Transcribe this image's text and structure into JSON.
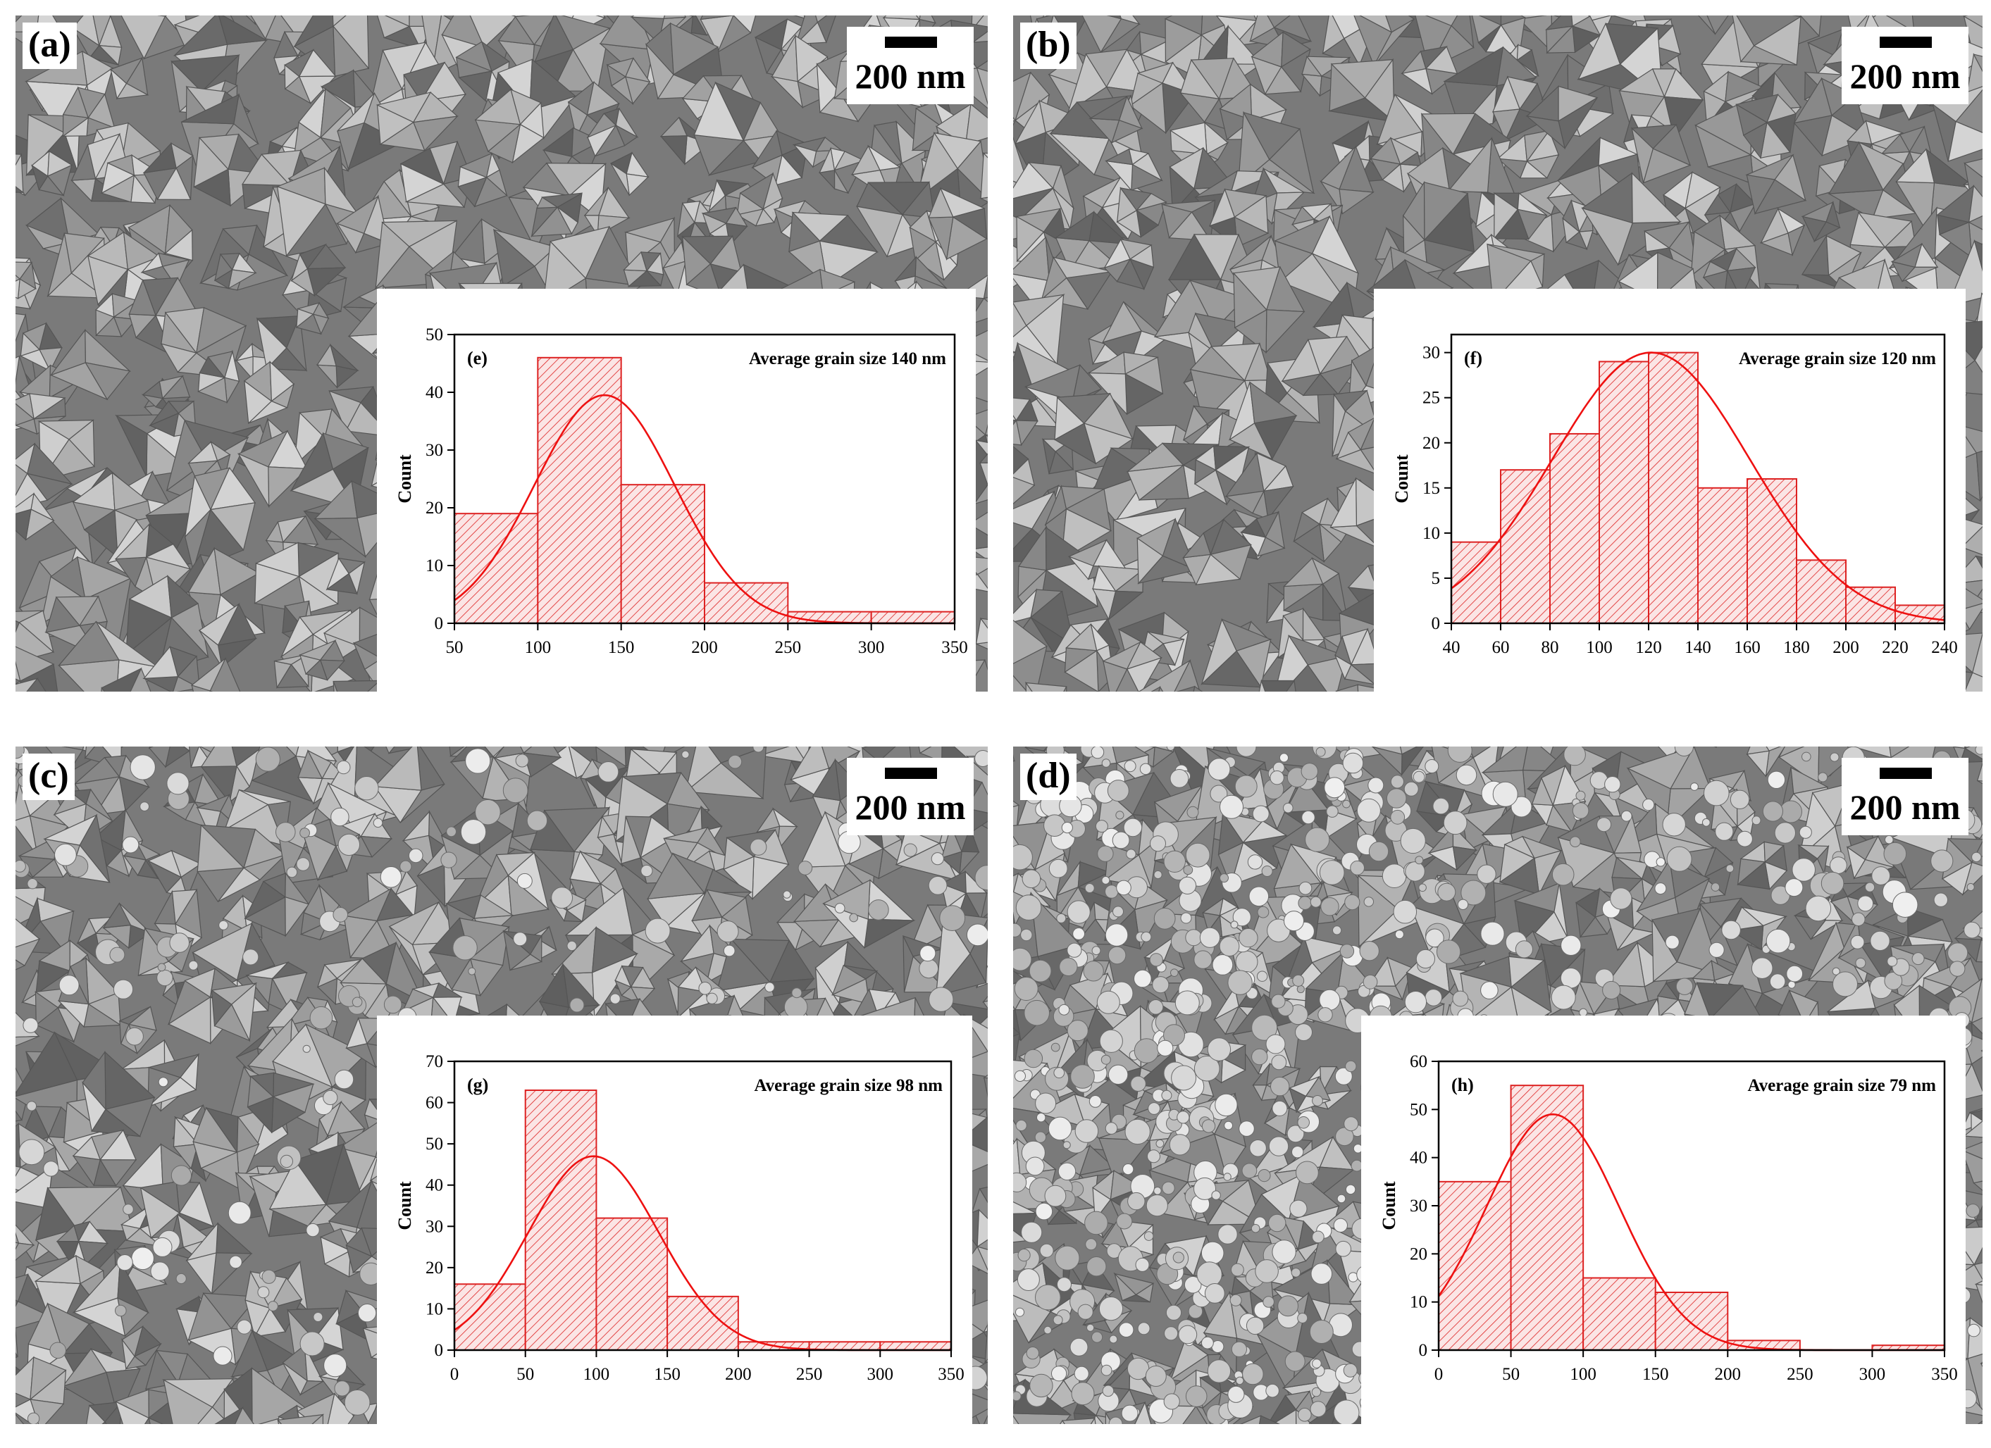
{
  "panels": [
    {
      "label": "(a)",
      "scale_label": "200 nm"
    },
    {
      "label": "(b)",
      "scale_label": "200 nm"
    },
    {
      "label": "(c)",
      "scale_label": "200 nm"
    },
    {
      "label": "(d)",
      "scale_label": "200 nm"
    }
  ],
  "colors": {
    "bar_fill": "#fbe5e5",
    "bar_stroke": "#dd2222",
    "curve": "#ee1111"
  },
  "chart_data": [
    {
      "type": "bar",
      "label": "(e)",
      "annotation": "Average grain size 140 nm",
      "ylabel": "Count",
      "xlabel": "",
      "bin_edges": [
        50,
        100,
        150,
        200,
        250,
        300,
        350
      ],
      "values": [
        19,
        46,
        24,
        7,
        2,
        2
      ],
      "xlim": [
        50,
        350
      ],
      "ylim": [
        0,
        50
      ],
      "xticks": [
        50,
        100,
        150,
        200,
        250,
        300,
        350
      ],
      "yticks": [
        0,
        10,
        20,
        30,
        40,
        50
      ],
      "fit": {
        "type": "gaussian",
        "peak_x": 140,
        "peak_y": 39.5,
        "sigma": 42
      }
    },
    {
      "type": "bar",
      "label": "(f)",
      "annotation": "Average grain size 120 nm",
      "ylabel": "Count",
      "xlabel": "",
      "bin_edges": [
        40,
        60,
        80,
        100,
        120,
        140,
        160,
        180,
        200,
        220,
        240
      ],
      "values": [
        9,
        17,
        21,
        29,
        30,
        15,
        16,
        7,
        4,
        2
      ],
      "xlim": [
        40,
        240
      ],
      "ylim": [
        0,
        32
      ],
      "xticks": [
        40,
        60,
        80,
        100,
        120,
        140,
        160,
        180,
        200,
        220,
        240
      ],
      "yticks": [
        0,
        5,
        10,
        15,
        20,
        25,
        30
      ],
      "fit": {
        "type": "gaussian",
        "peak_x": 121,
        "peak_y": 30,
        "sigma": 40
      }
    },
    {
      "type": "bar",
      "label": "(g)",
      "annotation": "Average grain size 98 nm",
      "ylabel": "Count",
      "xlabel": "",
      "bin_edges": [
        0,
        50,
        100,
        150,
        200,
        250,
        300,
        350
      ],
      "values": [
        16,
        63,
        32,
        13,
        2,
        2,
        2
      ],
      "xlim": [
        0,
        350
      ],
      "ylim": [
        0,
        70
      ],
      "xticks": [
        0,
        50,
        100,
        150,
        200,
        250,
        300,
        350
      ],
      "yticks": [
        0,
        10,
        20,
        30,
        40,
        50,
        60,
        70
      ],
      "fit": {
        "type": "gaussian",
        "peak_x": 98,
        "peak_y": 47,
        "sigma": 46
      }
    },
    {
      "type": "bar",
      "label": "(h)",
      "annotation": "Average grain size 79 nm",
      "ylabel": "Count",
      "xlabel": "",
      "bin_edges": [
        0,
        50,
        100,
        150,
        200,
        250,
        300,
        350
      ],
      "values": [
        35,
        55,
        15,
        12,
        2,
        0,
        1
      ],
      "xlim": [
        0,
        350
      ],
      "ylim": [
        0,
        60
      ],
      "xticks": [
        0,
        50,
        100,
        150,
        200,
        250,
        300,
        350
      ],
      "yticks": [
        0,
        10,
        20,
        30,
        40,
        50,
        60
      ],
      "fit": {
        "type": "gaussian",
        "peak_x": 79,
        "peak_y": 49,
        "sigma": 46
      }
    }
  ]
}
